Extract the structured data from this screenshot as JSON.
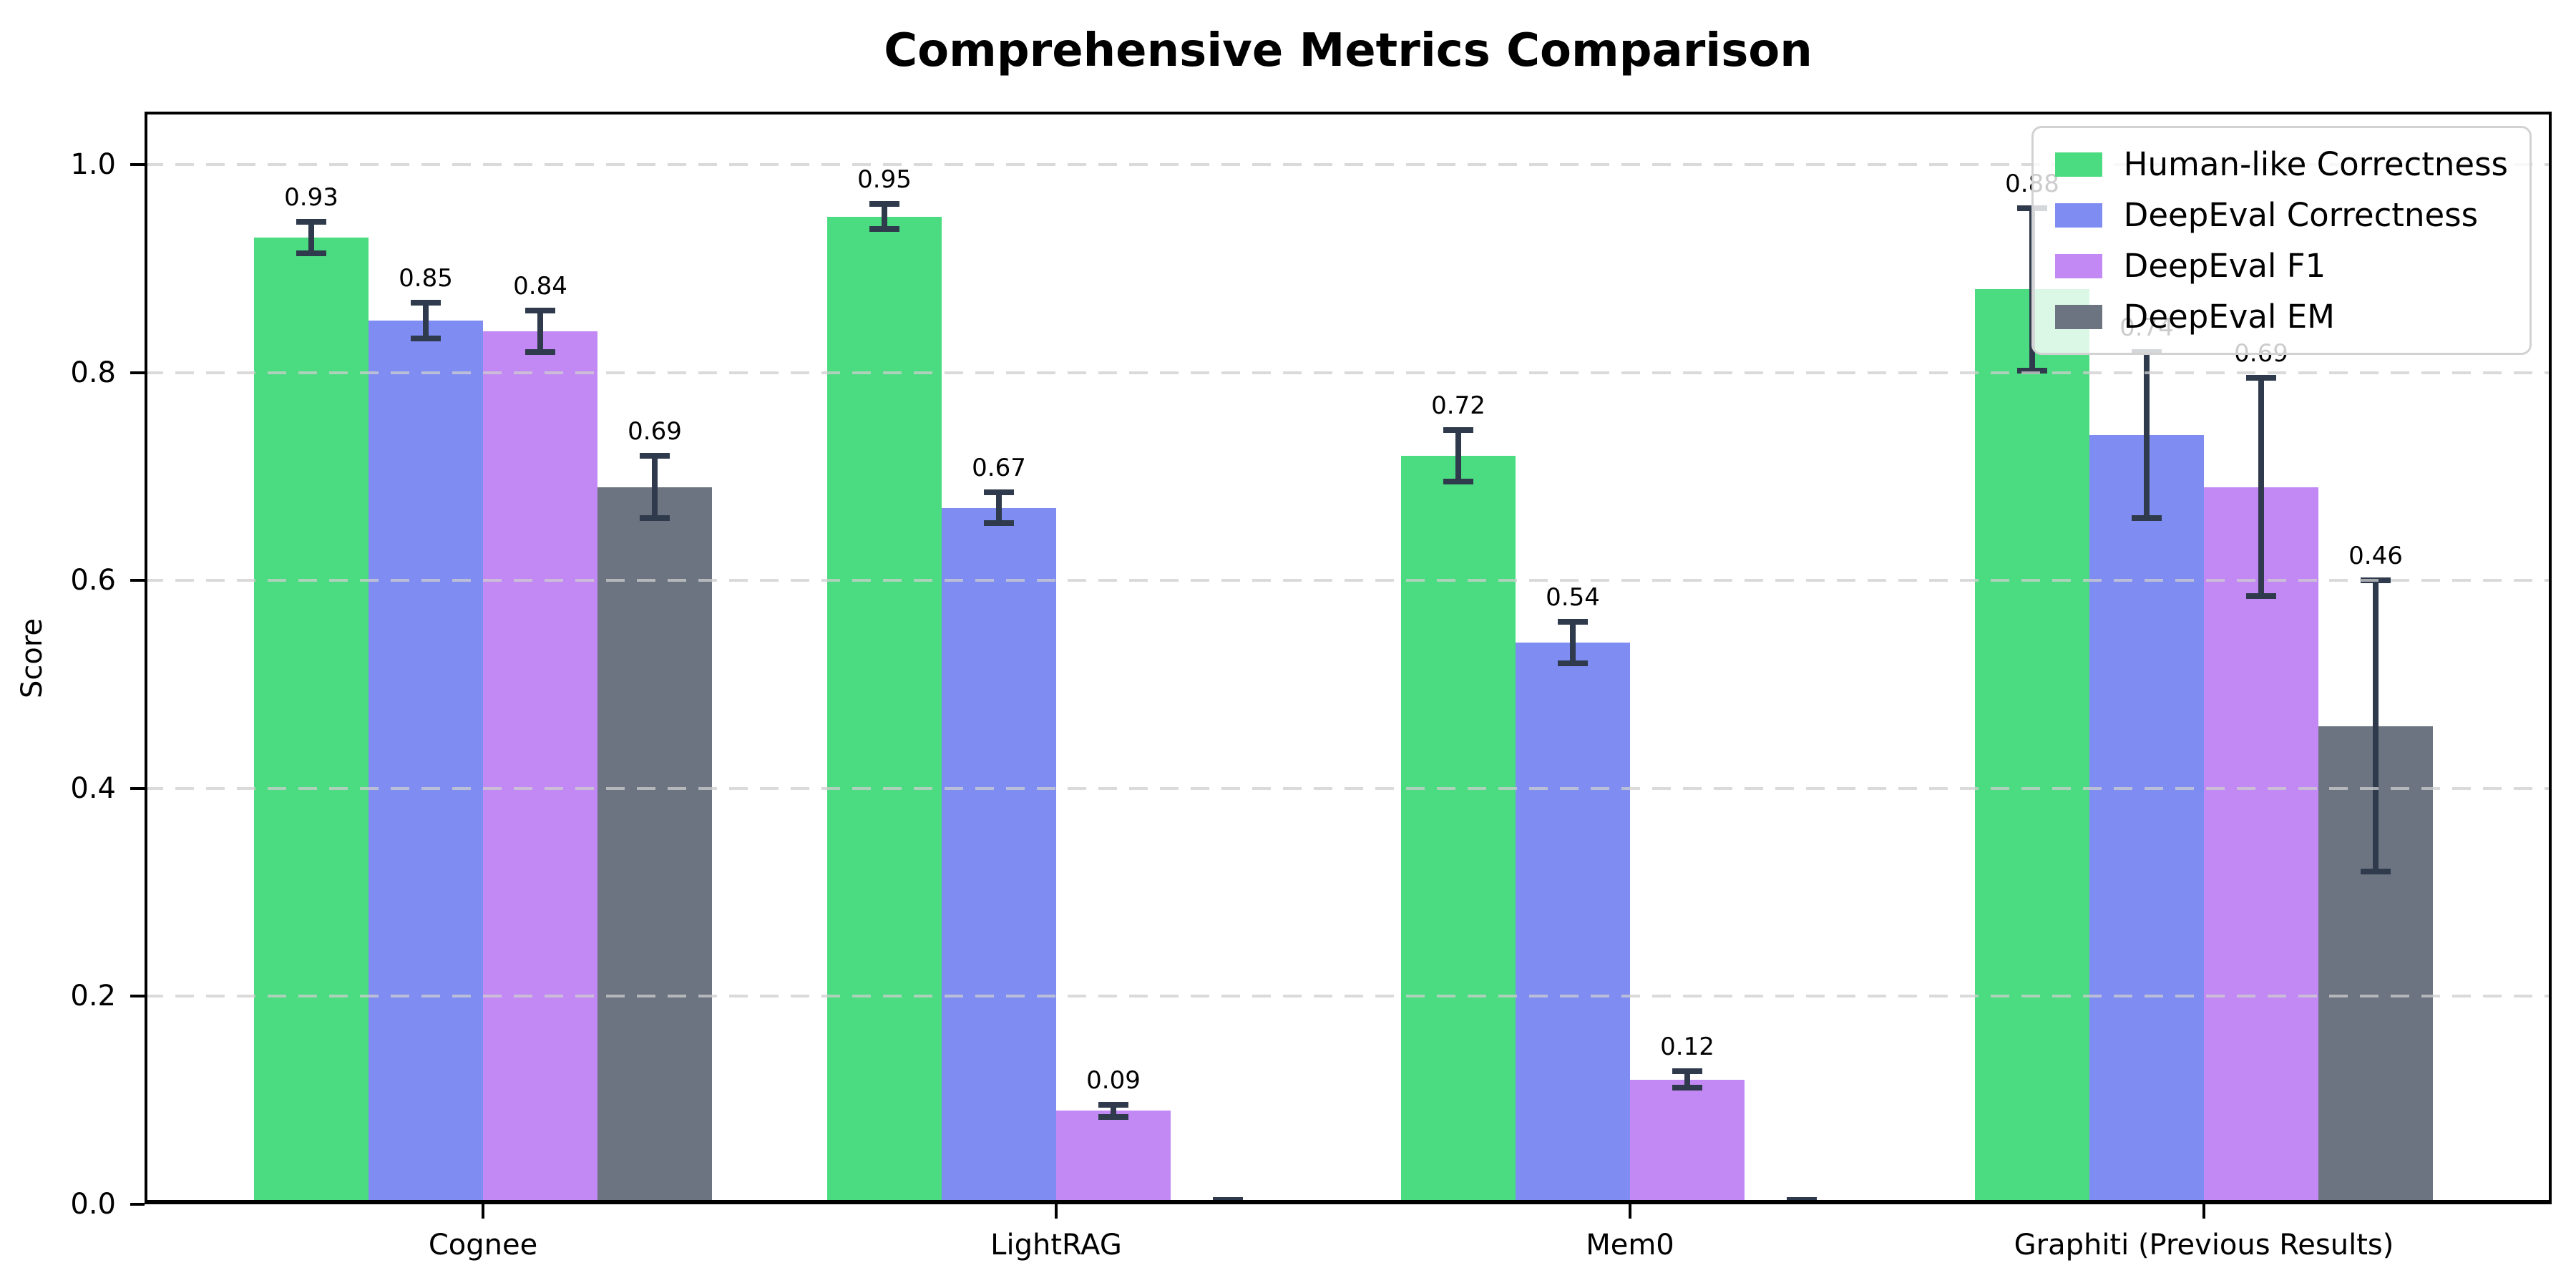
{
  "figure_title": "Comprehensive Metrics Comparison",
  "chart_data": {
    "type": "bar",
    "title": "Comprehensive Metrics Comparison",
    "xlabel": "",
    "ylabel": "Score",
    "ylim": [
      0,
      1.051
    ],
    "yticks": [
      {
        "value": 0.0,
        "label": "0.0"
      },
      {
        "value": 0.2,
        "label": "0.2"
      },
      {
        "value": 0.4,
        "label": "0.4"
      },
      {
        "value": 0.6,
        "label": "0.6"
      },
      {
        "value": 0.8,
        "label": "0.8"
      },
      {
        "value": 1.0,
        "label": "1.0"
      }
    ],
    "grid": {
      "axis": "y",
      "style": "dashed",
      "on": true
    },
    "legend": {
      "position": "upper right"
    },
    "categories": [
      "Cognee",
      "LightRAG",
      "Mem0",
      "Graphiti (Previous Results)"
    ],
    "series": [
      {
        "name": "Human-like Correctness",
        "color": "#4bdb80",
        "values": [
          0.93,
          0.95,
          0.72,
          0.88
        ],
        "errors": [
          0.015,
          0.012,
          0.025,
          0.078
        ],
        "value_labels": [
          "0.93",
          "0.95",
          "0.72",
          "0.88"
        ]
      },
      {
        "name": "DeepEval Correctness",
        "color": "#7f8cf2",
        "values": [
          0.85,
          0.67,
          0.54,
          0.74
        ],
        "errors": [
          0.017,
          0.015,
          0.02,
          0.08
        ],
        "value_labels": [
          "0.85",
          "0.67",
          "0.54",
          "0.74"
        ]
      },
      {
        "name": "DeepEval F1",
        "color": "#c289f5",
        "values": [
          0.84,
          0.09,
          0.12,
          0.69
        ],
        "errors": [
          0.02,
          0.006,
          0.008,
          0.105
        ],
        "value_labels": [
          "0.84",
          "0.09",
          "0.12",
          "0.69"
        ]
      },
      {
        "name": "DeepEval EM",
        "color": "#6b7480",
        "values": [
          0.69,
          0.0,
          0.0,
          0.46
        ],
        "errors": [
          0.03,
          0.004,
          0.004,
          0.14
        ],
        "value_labels": [
          "0.69",
          "",
          "",
          "0.46"
        ]
      }
    ],
    "colors": {
      "error_bar": "#2f3b4c",
      "grid": "#cecece",
      "axis": "#000000",
      "legend_border": "#d2d2d2",
      "background": "#ffffff"
    }
  }
}
